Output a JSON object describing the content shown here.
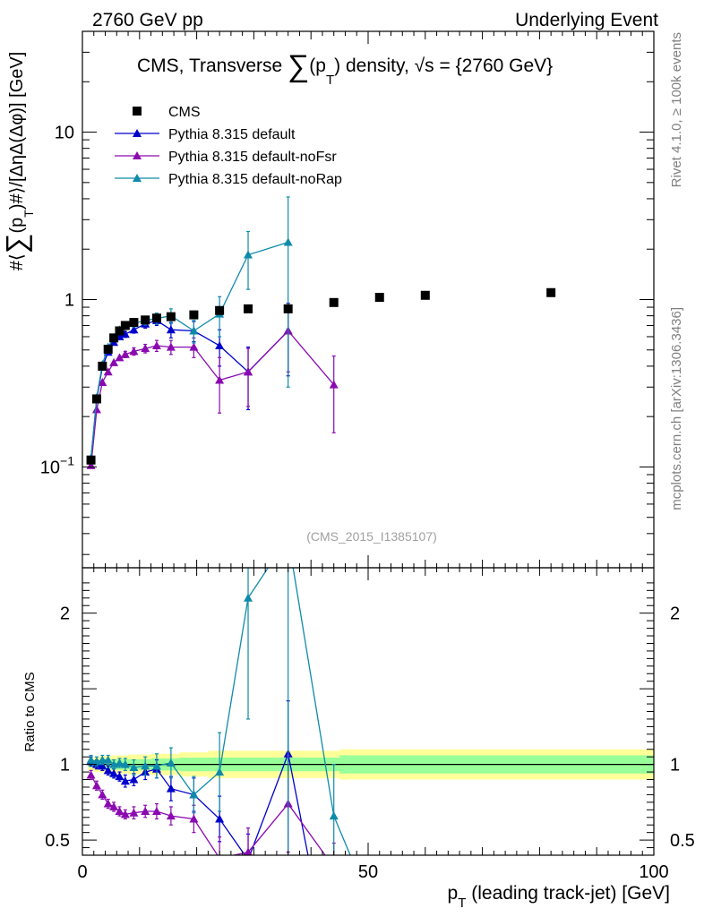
{
  "header": {
    "left": "2760 GeV pp",
    "right": "Underlying Event"
  },
  "side_labels": {
    "rivet": "Rivet 4.1.0, ≥ 100k events",
    "source": "mcplots.cern.ch [arXiv:1306.3436]"
  },
  "colors": {
    "cms": "#000000",
    "default": "#0000cc",
    "noFsr": "#8a0ab0",
    "noRap": "#0f8aaa",
    "band_outer": "#ffff99",
    "band_inner": "#99ff99"
  },
  "chart_data": [
    {
      "type": "scatter",
      "title": "CMS, Transverse ∑(p_T) density, √s = {2760 GeV}",
      "title_parts": {
        "prefix": "CMS, Transverse ",
        "sum": "∑",
        "p": "(p",
        "sub": "T",
        "suffix": ") density, √s = {2760 GeV}"
      },
      "ylabel": "#⟨∑(p_T)#⟩/[ΔηΔ(Δφ)] [GeV]",
      "ylabel_parts": {
        "a": "#⟨",
        "sum": "∑",
        "b": "(p",
        "sub": "T",
        "c": ")#⟩/[ΔηΔ(Δφ)] [GeV]"
      },
      "yscale": "log",
      "ylim": [
        0.025,
        40
      ],
      "xlim": [
        0,
        100
      ],
      "yticks": [
        {
          "value": 0.1,
          "label": "10",
          "sup": "−1"
        },
        {
          "value": 1,
          "label": "1"
        },
        {
          "value": 10,
          "label": "10"
        }
      ],
      "watermark": "(CMS_2015_I1385107)",
      "legend_position": "top-left",
      "series": [
        {
          "name": "CMS",
          "key": "cms",
          "marker": "square",
          "x": [
            1.5,
            2.5,
            3.5,
            4.5,
            5.5,
            6.5,
            7.5,
            9.0,
            11.0,
            13.0,
            15.5,
            19.5,
            24.0,
            29.0,
            36.0,
            44.0,
            52.0,
            60.0,
            82.0
          ],
          "y": [
            0.11,
            0.255,
            0.4,
            0.505,
            0.59,
            0.65,
            0.7,
            0.73,
            0.755,
            0.775,
            0.79,
            0.81,
            0.86,
            0.88,
            0.88,
            0.96,
            1.03,
            1.06,
            1.1
          ]
        },
        {
          "name": "Pythia 8.315 default",
          "key": "default",
          "marker": "triangle",
          "x": [
            1.5,
            2.5,
            3.5,
            4.5,
            5.5,
            6.5,
            7.5,
            9.0,
            11.0,
            13.0,
            15.5,
            19.5,
            24.0,
            29.0,
            36.0
          ],
          "y": [
            0.112,
            0.255,
            0.395,
            0.485,
            0.555,
            0.6,
            0.62,
            0.66,
            0.715,
            0.75,
            0.66,
            0.65,
            0.53,
            0.37,
            0.65
          ],
          "err": [
            0.003,
            0.005,
            0.008,
            0.01,
            0.015,
            0.02,
            0.025,
            0.03,
            0.04,
            0.05,
            0.07,
            0.09,
            0.13,
            0.15,
            0.3
          ]
        },
        {
          "name": "Pythia 8.315 default-noFsr",
          "key": "noFsr",
          "marker": "triangle",
          "x": [
            1.5,
            2.5,
            3.5,
            4.5,
            5.5,
            6.5,
            7.5,
            9.0,
            11.0,
            13.0,
            15.5,
            19.5,
            24.0,
            29.0,
            36.0,
            44.0
          ],
          "y": [
            0.102,
            0.22,
            0.32,
            0.37,
            0.42,
            0.45,
            0.47,
            0.49,
            0.51,
            0.53,
            0.52,
            0.52,
            0.33,
            0.37,
            0.65,
            0.31
          ],
          "err": [
            0.003,
            0.005,
            0.008,
            0.01,
            0.012,
            0.015,
            0.02,
            0.025,
            0.03,
            0.04,
            0.05,
            0.07,
            0.12,
            0.14,
            0.28,
            0.15
          ]
        },
        {
          "name": "Pythia 8.315 default-noRap",
          "key": "noRap",
          "marker": "triangle",
          "x": [
            1.5,
            2.5,
            3.5,
            4.5,
            5.5,
            6.5,
            7.5,
            9.0,
            11.0,
            13.0,
            15.5,
            19.5,
            24.0,
            29.0,
            36.0
          ],
          "y": [
            0.113,
            0.26,
            0.41,
            0.52,
            0.59,
            0.66,
            0.7,
            0.72,
            0.75,
            0.77,
            0.8,
            0.65,
            0.82,
            1.85,
            2.2
          ],
          "err": [
            0.003,
            0.005,
            0.01,
            0.012,
            0.015,
            0.02,
            0.03,
            0.035,
            0.045,
            0.06,
            0.08,
            0.1,
            0.22,
            0.7,
            1.9
          ]
        }
      ]
    },
    {
      "type": "line",
      "ylabel": "Ratio to CMS",
      "xlabel": "p_T (leading track-jet) [GeV]",
      "xlabel_parts": {
        "p": "p",
        "sub": "T",
        "rest": " (leading track-jet) [GeV]"
      },
      "xlim": [
        0,
        100
      ],
      "ylim": [
        0.4,
        2.3
      ],
      "xticks": [
        {
          "value": 0,
          "label": "0"
        },
        {
          "value": 50,
          "label": "50"
        },
        {
          "value": 100,
          "label": "100"
        }
      ],
      "yticks": [
        {
          "value": 0.5,
          "label": "0.5"
        },
        {
          "value": 1,
          "label": "1"
        },
        {
          "value": 2,
          "label": "2"
        }
      ],
      "band": {
        "x": [
          1,
          2,
          3,
          5,
          8,
          12,
          17,
          22,
          40,
          45,
          100
        ],
        "inner": [
          0.02,
          0.025,
          0.03,
          0.035,
          0.035,
          0.04,
          0.045,
          0.045,
          0.045,
          0.06,
          0.06
        ],
        "outer": [
          0.04,
          0.05,
          0.055,
          0.06,
          0.065,
          0.07,
          0.08,
          0.09,
          0.09,
          0.1,
          0.1
        ]
      },
      "series": [
        {
          "name": "Pythia 8.315 default",
          "key": "default",
          "x": [
            1.5,
            2.5,
            3.5,
            4.5,
            5.5,
            6.5,
            7.5,
            9.0,
            11.0,
            13.0,
            15.5,
            19.5,
            24.0,
            29.0,
            36.0,
            40.0
          ],
          "y": [
            1.02,
            1.0,
            0.99,
            0.96,
            0.94,
            0.92,
            0.89,
            0.9,
            0.95,
            0.97,
            0.84,
            0.8,
            0.64,
            0.37,
            1.07,
            0.3
          ],
          "err": [
            0.03,
            0.03,
            0.03,
            0.03,
            0.03,
            0.03,
            0.04,
            0.04,
            0.05,
            0.06,
            0.08,
            0.11,
            0.15,
            0.17,
            0.35,
            0.0
          ]
        },
        {
          "name": "Pythia 8.315 default-noFsr",
          "key": "noFsr",
          "x": [
            1.5,
            2.5,
            3.5,
            4.5,
            5.5,
            6.5,
            7.5,
            9.0,
            11.0,
            13.0,
            15.5,
            19.5,
            24.0,
            29.0,
            36.0,
            44.0
          ],
          "y": [
            0.93,
            0.86,
            0.8,
            0.74,
            0.72,
            0.69,
            0.67,
            0.68,
            0.69,
            0.69,
            0.66,
            0.64,
            0.38,
            0.42,
            0.74,
            0.32
          ],
          "err": [
            0.03,
            0.03,
            0.03,
            0.03,
            0.03,
            0.03,
            0.03,
            0.04,
            0.04,
            0.05,
            0.06,
            0.09,
            0.14,
            0.16,
            0.32,
            0.16
          ]
        },
        {
          "name": "Pythia 8.315 default-noRap",
          "key": "noRap",
          "x": [
            1.5,
            2.5,
            3.5,
            4.5,
            5.5,
            6.5,
            7.5,
            9.0,
            11.0,
            13.0,
            15.5,
            19.5,
            24.0,
            29.0,
            36.0,
            44.0,
            48.0
          ],
          "y": [
            1.03,
            1.02,
            1.03,
            1.03,
            1.0,
            1.01,
            1.0,
            0.98,
            0.99,
            0.99,
            1.01,
            0.8,
            0.95,
            2.1,
            2.5,
            0.66,
            0.3
          ],
          "err": [
            0.03,
            0.03,
            0.03,
            0.03,
            0.03,
            0.03,
            0.04,
            0.05,
            0.06,
            0.08,
            0.1,
            0.12,
            0.26,
            0.8,
            2.2,
            0.34,
            0.0
          ]
        }
      ]
    }
  ]
}
